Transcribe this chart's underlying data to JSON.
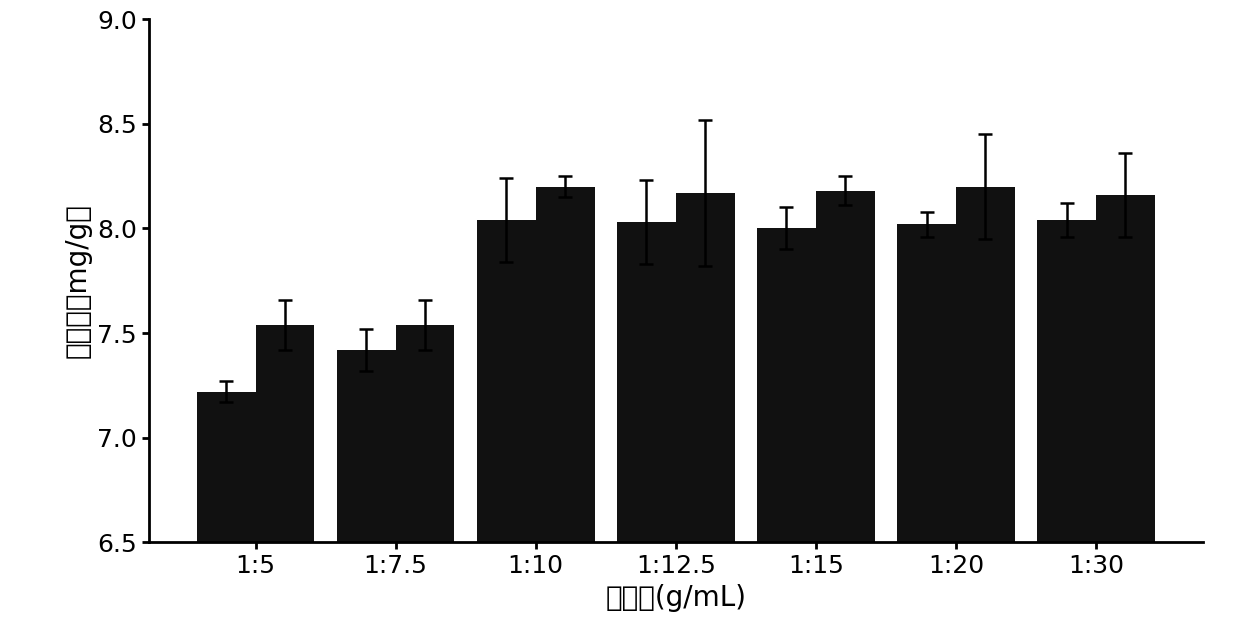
{
  "categories": [
    "1:5",
    "1:7.5",
    "1:10",
    "1:12.5",
    "1:15",
    "1:20",
    "1:30"
  ],
  "group1_values": [
    7.22,
    7.42,
    8.04,
    8.03,
    8.0,
    8.02,
    8.04
  ],
  "group2_values": [
    7.54,
    7.54,
    8.2,
    8.17,
    8.18,
    8.2,
    8.16
  ],
  "group1_errors": [
    0.05,
    0.1,
    0.2,
    0.2,
    0.1,
    0.06,
    0.08
  ],
  "group2_errors": [
    0.12,
    0.12,
    0.05,
    0.35,
    0.07,
    0.25,
    0.2
  ],
  "bar_color": "#111111",
  "bar_width": 0.42,
  "ylim": [
    6.5,
    9.0
  ],
  "yticks": [
    6.5,
    7.0,
    7.5,
    8.0,
    8.5,
    9.0
  ],
  "xlabel": "料液比(g/mL)",
  "ylabel": "提取率（mg/g）",
  "background_color": "#ffffff",
  "xlabel_fontsize": 20,
  "ylabel_fontsize": 20,
  "tick_fontsize": 18
}
